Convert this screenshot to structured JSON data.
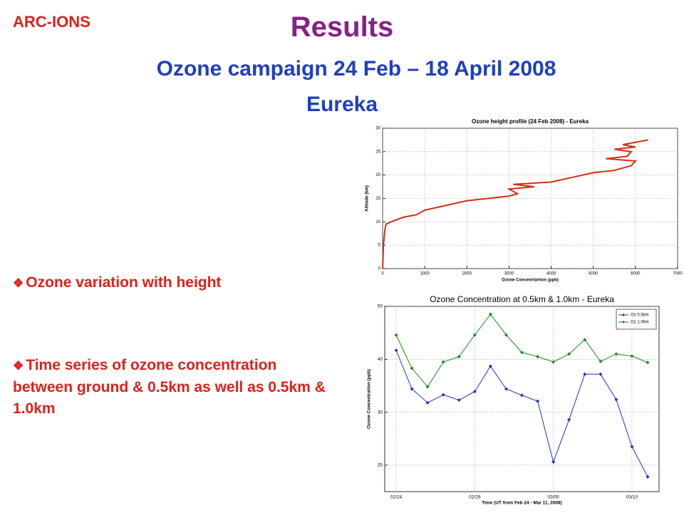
{
  "header": {
    "org": "ARC-IONS",
    "title": "Results",
    "subtitle": "Ozone campaign 24 Feb – 18 April 2008",
    "location": "Eureka"
  },
  "bullets": [
    "Ozone variation with height",
    "Time series of ozone concentration between ground & 0.5km as well as 0.5km & 1.0km"
  ],
  "chart_data": [
    {
      "type": "line",
      "title": "Ozone height profile (24 Feb 2008) - Eureka",
      "xlabel": "Ozone Concenrtartion (ppb)",
      "ylabel": "Altitude (km)",
      "x": [
        0,
        20,
        50,
        80,
        200,
        500,
        800,
        1000,
        1500,
        2000,
        2500,
        3000,
        3200,
        3000,
        3600,
        3100,
        4000,
        4500,
        5000,
        5500,
        5900,
        6000,
        5300,
        5800,
        5900,
        5500,
        6000,
        5700,
        6300
      ],
      "series": [
        {
          "color": "#d03010",
          "values": [
            0,
            5,
            8,
            9.5,
            10,
            11,
            11.5,
            12.5,
            13.5,
            14.5,
            15,
            15.5,
            16,
            17,
            17.5,
            18,
            18.5,
            19.5,
            20.5,
            21,
            22,
            23,
            23.5,
            24,
            25,
            25.5,
            26,
            26.5,
            27.5
          ]
        }
      ],
      "xlim": [
        0,
        7000
      ],
      "xticks": [
        0,
        1000,
        2000,
        3000,
        4000,
        5000,
        6000,
        7000
      ],
      "ylim": [
        0,
        30
      ],
      "yticks": [
        0,
        5,
        10,
        15,
        20,
        25,
        30
      ],
      "grid": true
    },
    {
      "type": "line",
      "title": "Ozone Concentration at 0.5km & 1.0km - Eureka",
      "xlabel": "Time (UT from Feb 24 - Mar 11, 2008)",
      "ylabel": "Ozone Concentration (ppb)",
      "categories": [
        "02/24",
        null,
        null,
        null,
        null,
        "02/29",
        null,
        null,
        null,
        null,
        "03/05",
        null,
        null,
        null,
        null,
        "03/10",
        null
      ],
      "series": [
        {
          "name": "Oz 0.5km",
          "color": "#1f2fd0",
          "values": [
            41.7,
            34.4,
            31.8,
            33.3,
            32.3,
            33.9,
            38.7,
            34.4,
            33.2,
            32.1,
            20.6,
            28.6,
            37.2,
            37.2,
            32.4,
            23.5,
            17.8
          ]
        },
        {
          "name": "Oz 1.0km",
          "color": "#1a8a1a",
          "values": [
            44.6,
            38.3,
            34.8,
            39.5,
            40.5,
            44.6,
            48.5,
            44.6,
            41.3,
            40.5,
            39.5,
            41.0,
            43.7,
            39.6,
            41.0,
            40.6,
            39.4
          ]
        }
      ],
      "ylim": [
        15,
        50
      ],
      "yticks": [
        20,
        30,
        40,
        50
      ],
      "grid": true,
      "legend": "upper right"
    }
  ]
}
